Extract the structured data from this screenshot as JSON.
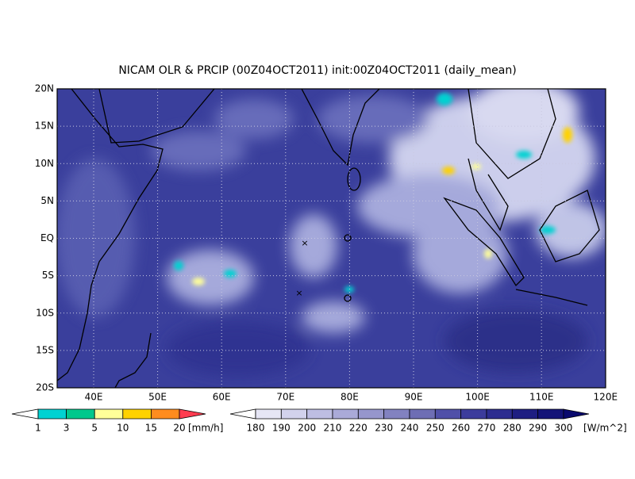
{
  "title": "NICAM OLR & PRCIP (00Z04OCT2011) init:00Z04OCT2011 (daily_mean)",
  "map": {
    "lat_labels": [
      "20N",
      "15N",
      "10N",
      "5N",
      "EQ",
      "5S",
      "10S",
      "15S",
      "20S"
    ],
    "lon_labels": [
      "40E",
      "50E",
      "60E",
      "70E",
      "80E",
      "90E",
      "100E",
      "110E",
      "120E"
    ]
  },
  "precip_colorbar": {
    "labels": [
      1,
      3,
      5,
      10,
      15,
      20
    ],
    "unit": "[mm/h]",
    "colors": [
      "#ffffff",
      "#00d2d2",
      "#00c88c",
      "#ffff99",
      "#ffd200",
      "#ff8c1e",
      "#ff3c50"
    ]
  },
  "olr_colorbar": {
    "labels": [
      180,
      190,
      200,
      210,
      220,
      230,
      240,
      250,
      260,
      270,
      280,
      290,
      300
    ],
    "unit": "[W/m^2]",
    "colors": [
      "#ffffff",
      "#e6e6f5",
      "#d2d2ec",
      "#bebee3",
      "#aaaad8",
      "#9696cc",
      "#8282c0",
      "#6e6eb4",
      "#5050a8",
      "#3c3c9c",
      "#2d2d90",
      "#1e1e82",
      "#141478",
      "#0a0a6e"
    ]
  }
}
